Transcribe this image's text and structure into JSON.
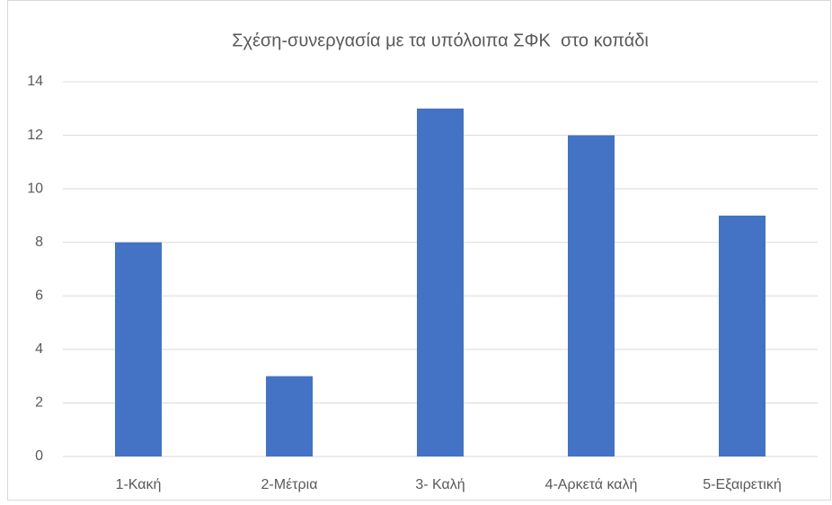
{
  "chart_data": {
    "type": "bar",
    "title": "Σχέση-συνεργασία με τα υπόλοιπα ΣΦΚ  στο κοπάδι",
    "categories": [
      "1-Κακή",
      "2-Μέτρια",
      "3- Καλή",
      "4-Αρκετά καλή",
      "5-Εξαιρετική"
    ],
    "values": [
      8,
      3,
      13,
      12,
      9
    ],
    "color": "#4472c4",
    "ylim": [
      0,
      14
    ],
    "yticks": [
      0,
      2,
      4,
      6,
      8,
      10,
      12,
      14
    ],
    "grid": true
  }
}
